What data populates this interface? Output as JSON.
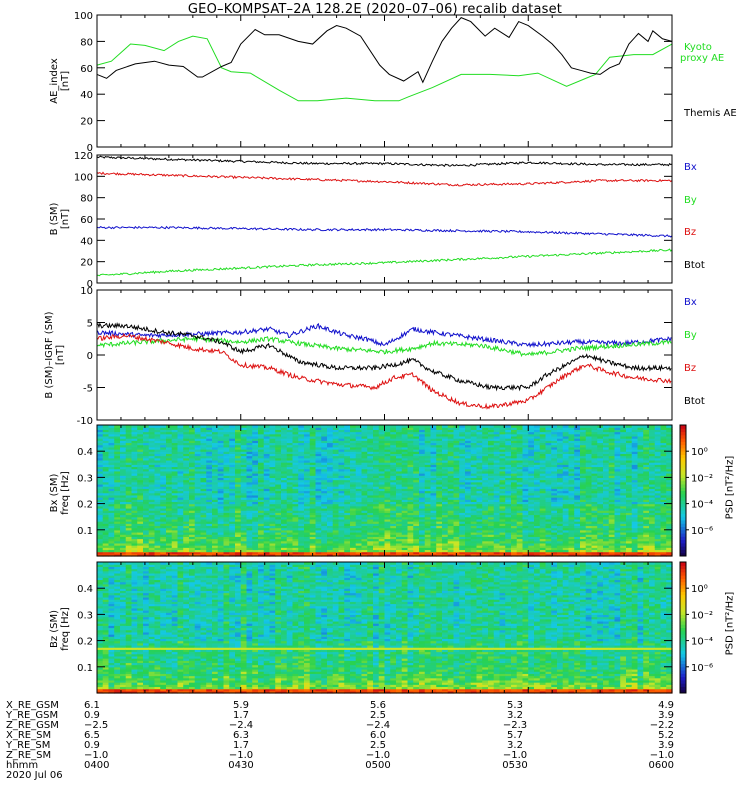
{
  "title": "GEO–KOMPSAT–2A 128.2E (2020–07–06) recalib dataset",
  "panels": {
    "ae": {
      "ylabel_main": "AE_index",
      "ylabel_unit": "[nT]",
      "legend": [
        "Kyoto",
        "proxy AE",
        "Themis AE"
      ]
    },
    "b_sm": {
      "ylabel_main": "B (SM)",
      "ylabel_unit": "[nT]",
      "legend": [
        "Bx",
        "By",
        "Bz",
        "Btot"
      ]
    },
    "b_minus_igrf": {
      "ylabel_main": "B (SM)–IGRF (SM)",
      "ylabel_unit": "[nT]",
      "legend": [
        "Bx",
        "By",
        "Bz",
        "Btot"
      ]
    },
    "spec_bx": {
      "ylabel_main": "Bx (SM)",
      "ylabel_unit": "freq [Hz]",
      "cbar_label": "PSD [nT²/Hz]",
      "cbar_ticks": [
        "10⁰",
        "10⁻²",
        "10⁻⁴",
        "10⁻⁶"
      ]
    },
    "spec_bz": {
      "ylabel_main": "Bz (SM)",
      "ylabel_unit": "freq [Hz]",
      "cbar_label": "PSD [nT²/Hz]",
      "cbar_ticks": [
        "10⁰",
        "10⁻²",
        "10⁻⁴",
        "10⁻⁶"
      ]
    }
  },
  "colors": {
    "black": "#000000",
    "green": "#22dd22",
    "red": "#dd1111",
    "blue": "#1111cc"
  },
  "ephemeris": {
    "row_labels": [
      "X_RE_GSM",
      "Y_RE_GSM",
      "Z_RE_GSM",
      "X_RE_SM",
      "Y_RE_SM",
      "Z_RE_SM",
      "hhmm",
      "2020 Jul 06"
    ],
    "columns": [
      [
        "6.1",
        "0.9",
        "−2.5",
        "6.5",
        "0.9",
        "−1.0",
        "0400"
      ],
      [
        "5.9",
        "1.7",
        "−2.4",
        "6.3",
        "1.7",
        "−1.0",
        "0430"
      ],
      [
        "5.6",
        "2.5",
        "−2.4",
        "6.0",
        "2.5",
        "−1.0",
        "0500"
      ],
      [
        "5.3",
        "3.2",
        "−2.3",
        "5.7",
        "3.2",
        "−1.0",
        "0530"
      ],
      [
        "4.9",
        "3.9",
        "−2.2",
        "5.2",
        "3.9",
        "−1.0",
        "0600"
      ]
    ]
  },
  "chart_data": [
    {
      "type": "line",
      "title": "GEO–KOMPSAT–2A 128.2E (2020–07–06) recalib dataset",
      "ylabel": "AE_index [nT]",
      "xlim": [
        0,
        120
      ],
      "ylim": [
        0,
        100
      ],
      "yticks": [
        0,
        20,
        40,
        60,
        80,
        100
      ],
      "series": [
        {
          "name": "Kyoto proxy AE",
          "color": "#22dd22",
          "x": [
            0,
            3,
            7,
            10,
            14,
            17,
            20,
            23,
            26,
            28,
            32,
            38,
            42,
            46,
            52,
            58,
            63,
            65,
            70,
            76,
            82,
            88,
            92,
            98,
            102,
            104,
            107,
            112,
            116,
            120
          ],
          "y": [
            62,
            65,
            78,
            77,
            73,
            80,
            84,
            82,
            60,
            57,
            56,
            43,
            35,
            35,
            37,
            35,
            35,
            38,
            45,
            55,
            55,
            54,
            56,
            46,
            52,
            55,
            68,
            70,
            70,
            78
          ]
        },
        {
          "name": "Themis AE",
          "color": "#000000",
          "x": [
            0,
            2,
            4,
            8,
            12,
            15,
            18,
            21,
            22,
            26,
            28,
            30,
            33,
            35,
            38,
            42,
            45,
            48,
            50,
            52,
            55,
            59,
            61,
            64,
            67,
            68,
            70,
            72,
            74,
            76,
            78,
            81,
            83,
            86,
            88,
            90,
            93,
            95,
            97,
            99,
            101,
            103,
            105,
            107,
            109,
            111,
            113,
            115,
            116,
            118,
            120
          ],
          "y": [
            55,
            52,
            58,
            63,
            65,
            62,
            61,
            53,
            53,
            61,
            64,
            78,
            89,
            85,
            85,
            80,
            78,
            88,
            92,
            90,
            84,
            62,
            55,
            50,
            57,
            49,
            65,
            80,
            90,
            98,
            95,
            84,
            90,
            83,
            95,
            92,
            84,
            78,
            70,
            60,
            58,
            56,
            55,
            60,
            63,
            78,
            86,
            80,
            88,
            82,
            80
          ]
        }
      ]
    },
    {
      "type": "line",
      "ylabel": "B (SM) [nT]",
      "xlim": [
        0,
        120
      ],
      "ylim": [
        0,
        120
      ],
      "yticks": [
        0,
        20,
        40,
        60,
        80,
        100,
        120
      ],
      "series": [
        {
          "name": "Btot",
          "color": "#000000",
          "x": [
            0,
            15,
            30,
            45,
            60,
            75,
            90,
            105,
            120
          ],
          "y": [
            118,
            116,
            114,
            112,
            112,
            110,
            113,
            111,
            111
          ]
        },
        {
          "name": "Bz",
          "color": "#dd1111",
          "x": [
            0,
            15,
            30,
            45,
            60,
            75,
            90,
            105,
            120
          ],
          "y": [
            103,
            101,
            99,
            97,
            95,
            92,
            93,
            96,
            96
          ]
        },
        {
          "name": "Bx",
          "color": "#1111cc",
          "x": [
            0,
            15,
            30,
            45,
            60,
            75,
            90,
            105,
            120
          ],
          "y": [
            52,
            52,
            51,
            50,
            50,
            49,
            48,
            46,
            44
          ]
        },
        {
          "name": "By",
          "color": "#22dd22",
          "x": [
            0,
            15,
            30,
            45,
            60,
            75,
            90,
            105,
            120
          ],
          "y": [
            7,
            11,
            14,
            17,
            19,
            22,
            25,
            28,
            31
          ]
        }
      ]
    },
    {
      "type": "line",
      "ylabel": "B (SM)–IGRF (SM) [nT]",
      "xlim": [
        0,
        120
      ],
      "ylim": [
        -10,
        10
      ],
      "yticks": [
        -10,
        -5,
        0,
        5,
        10
      ],
      "series": [
        {
          "name": "Bx",
          "color": "#1111cc",
          "x": [
            0,
            10,
            20,
            30,
            36,
            40,
            46,
            52,
            56,
            60,
            66,
            70,
            80,
            90,
            100,
            110,
            120
          ],
          "y": [
            3.5,
            3.0,
            3.2,
            3.5,
            4.0,
            3.0,
            4.5,
            3.0,
            2.5,
            1.5,
            4.0,
            3.5,
            2.5,
            1.5,
            2.0,
            1.8,
            2.5
          ]
        },
        {
          "name": "By",
          "color": "#22dd22",
          "x": [
            0,
            10,
            20,
            30,
            36,
            40,
            50,
            60,
            66,
            70,
            80,
            90,
            100,
            110,
            120
          ],
          "y": [
            1.5,
            2.0,
            2.5,
            2.0,
            2.5,
            2.0,
            1.0,
            0.5,
            1.0,
            1.8,
            1.5,
            0.0,
            1.0,
            1.5,
            2.0
          ]
        },
        {
          "name": "Btot",
          "color": "#000000",
          "x": [
            0,
            6,
            14,
            20,
            26,
            30,
            36,
            42,
            50,
            58,
            62,
            66,
            70,
            76,
            82,
            90,
            94,
            98,
            102,
            106,
            112,
            120
          ],
          "y": [
            4.5,
            4.5,
            3.5,
            3.0,
            2.0,
            0.5,
            1.5,
            -1.0,
            -2.0,
            -2.0,
            -1.5,
            -0.8,
            -2.5,
            -4.0,
            -5.0,
            -5.0,
            -3.0,
            -1.5,
            0.0,
            -1.0,
            -2.0,
            -2.0
          ]
        },
        {
          "name": "Bz",
          "color": "#dd1111",
          "x": [
            0,
            6,
            14,
            20,
            26,
            30,
            36,
            42,
            50,
            58,
            62,
            66,
            70,
            76,
            82,
            90,
            94,
            98,
            102,
            106,
            112,
            120
          ],
          "y": [
            2.5,
            3.0,
            2.0,
            1.0,
            0.5,
            -1.5,
            -2.0,
            -3.5,
            -4.5,
            -5.0,
            -3.5,
            -3.0,
            -5.5,
            -7.5,
            -8.0,
            -7.0,
            -5.0,
            -3.0,
            -1.5,
            -2.5,
            -3.5,
            -4.0
          ]
        }
      ]
    },
    {
      "type": "heatmap",
      "name": "Bx (SM) spectrogram",
      "ylabel": "Bx (SM) freq [Hz]",
      "ylim": [
        0,
        0.5
      ],
      "yticks": [
        0.1,
        0.2,
        0.3,
        0.4
      ],
      "colorbar_label": "PSD [nT²/Hz]",
      "colorbar_ticks": [
        "10⁰",
        "10⁻²",
        "10⁻⁴",
        "10⁻⁶"
      ]
    },
    {
      "type": "heatmap",
      "name": "Bz (SM) spectrogram",
      "ylabel": "Bz (SM) freq [Hz]",
      "ylim": [
        0,
        0.5
      ],
      "yticks": [
        0.1,
        0.2,
        0.3,
        0.4
      ],
      "colorbar_label": "PSD [nT²/Hz]",
      "colorbar_ticks": [
        "10⁰",
        "10⁻²",
        "10⁻⁴",
        "10⁻⁶"
      ]
    }
  ]
}
